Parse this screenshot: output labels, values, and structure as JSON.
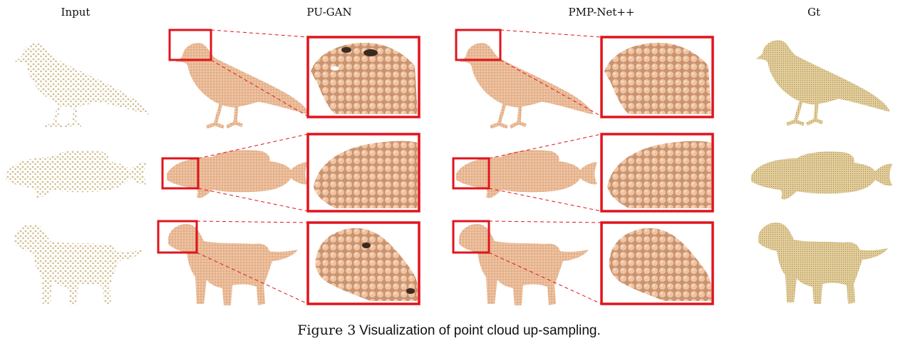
{
  "columns": {
    "input": "Input",
    "pugan": "PU-GAN",
    "pmpnet": "PMP-Net++",
    "gt": "Gt"
  },
  "rows": [
    "bird",
    "fish",
    "dog"
  ],
  "colors": {
    "input_points": "#d8c79a",
    "upsampled_points": "#e6b896",
    "gt_mesh": "#e7d3a0",
    "highlight_box": "#e0141e"
  },
  "caption": {
    "label": "Figure 3",
    "text": "Visualization of point cloud up-sampling."
  }
}
